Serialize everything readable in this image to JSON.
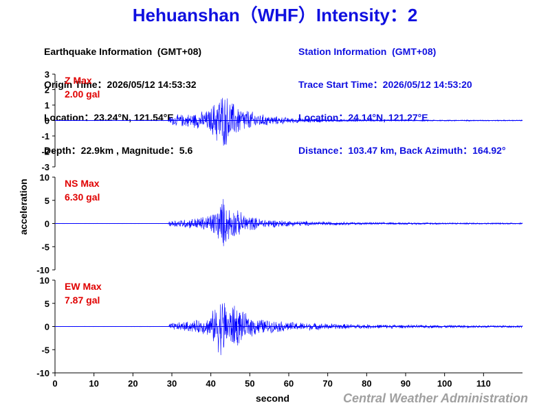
{
  "title": "Hehuanshan（WHF）Intensity：2",
  "earthquake_info": {
    "header": "Earthquake Information  (GMT+08)",
    "origin_time": "Origin Time：2026/05/12 14:53:32",
    "location": "Location：23.24°N, 121.54°E",
    "depth_magnitude": "Depth：22.9km , Magnitude：5.6"
  },
  "station_info": {
    "header": "Station Information  (GMT+08)",
    "trace_start": "Trace Start Time：2026/05/12 14:53:20",
    "location": "Location：24.14°N, 121.27°E",
    "distance": "Distance：103.47 km, Back Azimuth：164.92°"
  },
  "credit": "Central Weather Administration",
  "colors": {
    "title": "#1010e0",
    "trace": "#0000ff",
    "max_label": "#e00000",
    "credit": "#a0a0a0"
  },
  "chart_data": {
    "type": "line",
    "xlabel": "second",
    "ylabel": "acceleration",
    "xlim": [
      0,
      120
    ],
    "xticks": [
      0,
      10,
      20,
      30,
      40,
      50,
      60,
      70,
      80,
      90,
      100,
      110
    ],
    "panels": [
      {
        "name": "Z",
        "max_label": "Z Max",
        "max_value": "2.00 gal",
        "ylim": [
          -3,
          3
        ],
        "yticks": [
          3,
          2,
          1,
          0,
          -1,
          -2,
          -3
        ],
        "onset_s": 29.5,
        "envelope": [
          [
            0,
            0.02
          ],
          [
            29,
            0.02
          ],
          [
            29.5,
            0.3
          ],
          [
            31,
            0.4
          ],
          [
            33,
            0.45
          ],
          [
            35,
            0.5
          ],
          [
            37,
            0.6
          ],
          [
            39,
            0.7
          ],
          [
            40,
            0.9
          ],
          [
            41,
            1.4
          ],
          [
            42,
            1.8
          ],
          [
            43,
            2.0
          ],
          [
            44,
            1.8
          ],
          [
            45,
            1.5
          ],
          [
            46,
            1.2
          ],
          [
            48,
            0.9
          ],
          [
            50,
            0.7
          ],
          [
            52,
            0.5
          ],
          [
            55,
            0.35
          ],
          [
            60,
            0.2
          ],
          [
            65,
            0.15
          ],
          [
            70,
            0.1
          ],
          [
            80,
            0.07
          ],
          [
            90,
            0.05
          ],
          [
            100,
            0.05
          ],
          [
            110,
            0.04
          ],
          [
            120,
            0.04
          ]
        ]
      },
      {
        "name": "NS",
        "max_label": "NS Max",
        "max_value": "6.30 gal",
        "ylim": [
          -10,
          10
        ],
        "yticks": [
          10,
          5,
          0,
          -5,
          -10
        ],
        "onset_s": 29.5,
        "envelope": [
          [
            0,
            0.05
          ],
          [
            29,
            0.05
          ],
          [
            29.5,
            0.8
          ],
          [
            31,
            0.9
          ],
          [
            33,
            1.0
          ],
          [
            35,
            1.2
          ],
          [
            37,
            1.5
          ],
          [
            39,
            1.9
          ],
          [
            40,
            2.4
          ],
          [
            41,
            3.2
          ],
          [
            42,
            4.0
          ],
          [
            43,
            6.3
          ],
          [
            44,
            4.5
          ],
          [
            45,
            3.8
          ],
          [
            46,
            3.5
          ],
          [
            48,
            2.5
          ],
          [
            50,
            1.8
          ],
          [
            52,
            1.3
          ],
          [
            55,
            1.0
          ],
          [
            60,
            0.7
          ],
          [
            65,
            0.55
          ],
          [
            70,
            0.45
          ],
          [
            80,
            0.3
          ],
          [
            90,
            0.25
          ],
          [
            100,
            0.22
          ],
          [
            110,
            0.2
          ],
          [
            120,
            0.18
          ]
        ]
      },
      {
        "name": "EW",
        "max_label": "EW Max",
        "max_value": "7.87 gal",
        "ylim": [
          -10,
          10
        ],
        "yticks": [
          10,
          5,
          0,
          -5,
          -10
        ],
        "onset_s": 29.5,
        "envelope": [
          [
            0,
            0.05
          ],
          [
            29,
            0.05
          ],
          [
            29.5,
            0.8
          ],
          [
            31,
            0.9
          ],
          [
            33,
            1.1
          ],
          [
            35,
            1.3
          ],
          [
            37,
            1.6
          ],
          [
            39,
            2.0
          ],
          [
            40,
            2.8
          ],
          [
            41,
            4.5
          ],
          [
            42,
            6.0
          ],
          [
            43,
            7.87
          ],
          [
            44,
            5.5
          ],
          [
            45,
            4.5
          ],
          [
            46,
            5.8
          ],
          [
            48,
            3.5
          ],
          [
            50,
            2.5
          ],
          [
            52,
            2.0
          ],
          [
            55,
            1.5
          ],
          [
            60,
            1.1
          ],
          [
            65,
            0.9
          ],
          [
            70,
            0.7
          ],
          [
            80,
            0.5
          ],
          [
            90,
            0.4
          ],
          [
            100,
            0.35
          ],
          [
            110,
            0.3
          ],
          [
            120,
            0.28
          ]
        ]
      }
    ]
  }
}
